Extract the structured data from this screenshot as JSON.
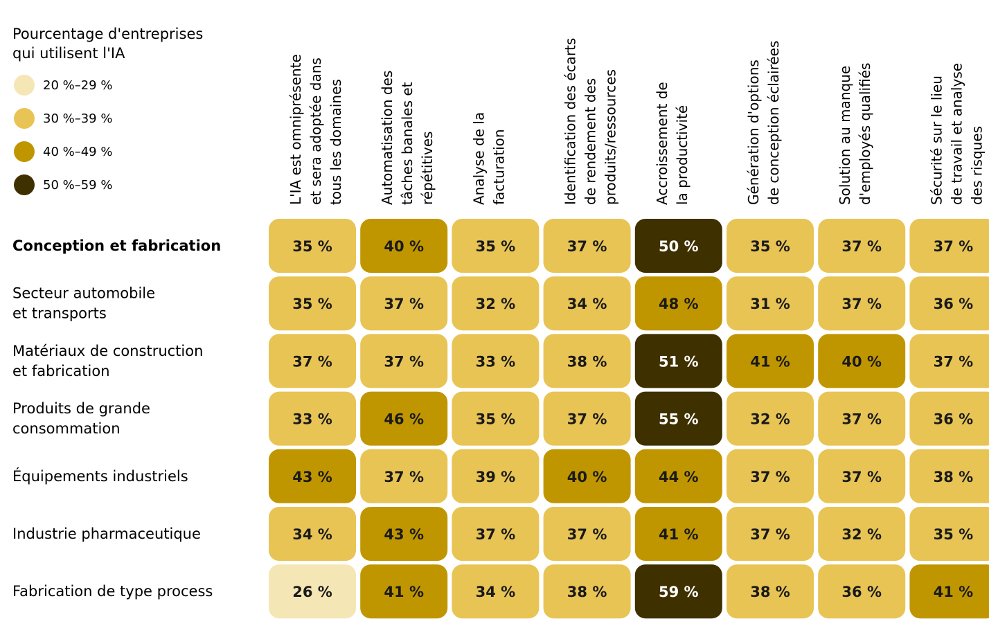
{
  "chart_data": {
    "type": "heatmap",
    "legend": {
      "title_lines": [
        "Pourcentage d'entreprises",
        "qui utilisent l'IA"
      ],
      "bins": [
        {
          "label": "20 %–29 %",
          "min": 20,
          "max": 29,
          "color": "#f5e6b5",
          "text_color": "#1a1a1a"
        },
        {
          "label": "30 %–39 %",
          "min": 30,
          "max": 39,
          "color": "#e8c455",
          "text_color": "#1a1a1a"
        },
        {
          "label": "40 %–49 %",
          "min": 40,
          "max": 49,
          "color": "#c09600",
          "text_color": "#1a1a1a"
        },
        {
          "label": "50 %–59 %",
          "min": 50,
          "max": 59,
          "color": "#3f3000",
          "text_color": "#ffffff"
        }
      ]
    },
    "columns": [
      [
        "L'IA est omniprésente",
        "et sera adoptée dans",
        "tous les domaines"
      ],
      [
        "Automatisation des",
        "tâches banales et",
        "répétitives"
      ],
      [
        "Analyse de la",
        "facturation"
      ],
      [
        "Identification des écarts",
        "de rendement des",
        "produits/ressources"
      ],
      [
        "Accroissement de",
        "la productivité"
      ],
      [
        "Génération d'options",
        "de conception éclairées"
      ],
      [
        "Solution au manque",
        "d'employés qualifiés"
      ],
      [
        "Sécurité sur le lieu",
        "de travail et analyse",
        "des risques"
      ]
    ],
    "rows": [
      {
        "label_lines": [
          "Conception et fabrication"
        ],
        "bold": true,
        "values": [
          35,
          40,
          35,
          37,
          50,
          35,
          37,
          37
        ]
      },
      {
        "label_lines": [
          "Secteur automobile",
          "et transports"
        ],
        "bold": false,
        "values": [
          35,
          37,
          32,
          34,
          48,
          31,
          37,
          36
        ]
      },
      {
        "label_lines": [
          "Matériaux de construction",
          "et fabrication"
        ],
        "bold": false,
        "values": [
          37,
          37,
          33,
          38,
          51,
          41,
          40,
          37
        ]
      },
      {
        "label_lines": [
          "Produits de grande",
          "consommation"
        ],
        "bold": false,
        "values": [
          33,
          46,
          35,
          37,
          55,
          32,
          37,
          36
        ]
      },
      {
        "label_lines": [
          "Équipements industriels"
        ],
        "bold": false,
        "values": [
          43,
          37,
          39,
          40,
          44,
          37,
          37,
          38
        ]
      },
      {
        "label_lines": [
          "Industrie pharmaceutique"
        ],
        "bold": false,
        "values": [
          34,
          43,
          37,
          37,
          41,
          37,
          32,
          35
        ]
      },
      {
        "label_lines": [
          "Fabrication de type process"
        ],
        "bold": false,
        "values": [
          26,
          41,
          34,
          38,
          59,
          38,
          36,
          41
        ]
      }
    ],
    "value_suffix": " %"
  }
}
